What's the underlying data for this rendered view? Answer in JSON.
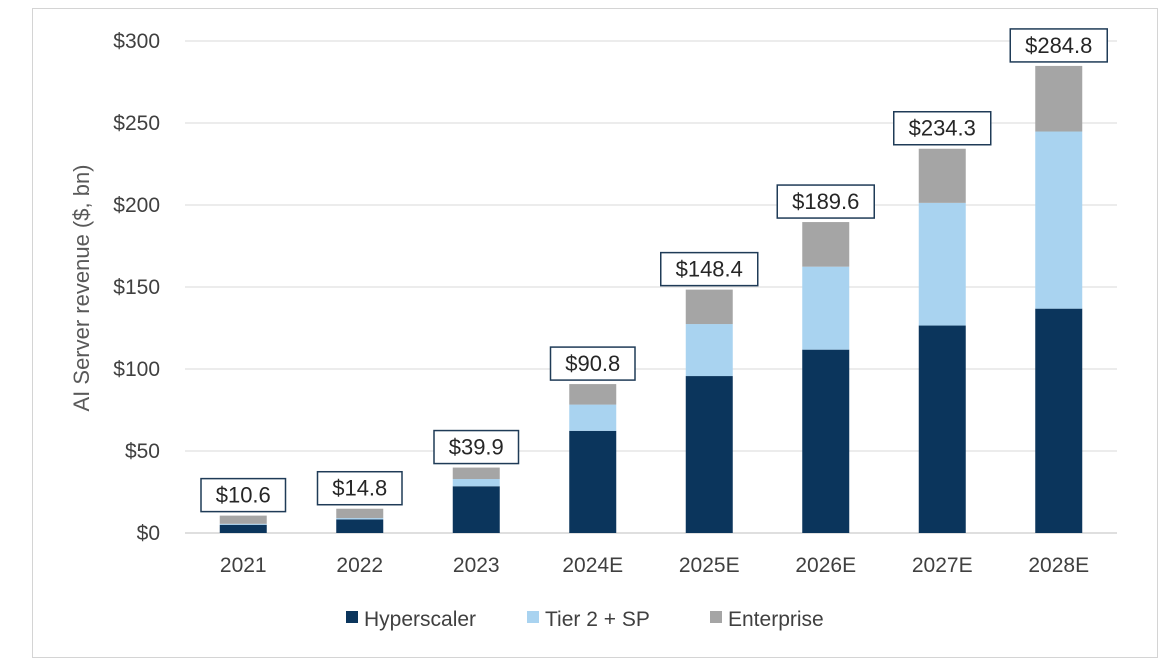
{
  "chart_data": {
    "type": "bar",
    "stacked": true,
    "ylabel": "AI Server revenue ($, bn)",
    "xlabel": "",
    "ylim": [
      0,
      300
    ],
    "yticks": [
      0,
      50,
      100,
      150,
      200,
      250,
      300
    ],
    "ytick_labels": [
      "$0",
      "$50",
      "$100",
      "$150",
      "$200",
      "$250",
      "$300"
    ],
    "grid": true,
    "legend_position": "bottom",
    "categories": [
      "2021",
      "2022",
      "2023",
      "2024E",
      "2025E",
      "2026E",
      "2027E",
      "2028E"
    ],
    "series": [
      {
        "name": "Hyperscaler",
        "color": "#0b355c",
        "values": [
          5.0,
          8.3,
          28.5,
          62.3,
          95.7,
          111.8,
          126.5,
          136.8
        ]
      },
      {
        "name": "Tier 2 + SP",
        "color": "#a9d3f0",
        "values": [
          0.6,
          0.8,
          4.4,
          16.0,
          31.7,
          50.6,
          74.8,
          108.0
        ]
      },
      {
        "name": "Enterprise",
        "color": "#a5a5a5",
        "values": [
          5.0,
          5.7,
          7.0,
          12.5,
          21.0,
          27.2,
          33.0,
          40.0
        ]
      }
    ],
    "totals": [
      10.6,
      14.8,
      39.9,
      90.8,
      148.4,
      189.6,
      234.3,
      284.8
    ],
    "total_labels": [
      "$10.6",
      "$14.8",
      "$39.9",
      "$90.8",
      "$148.4",
      "$189.6",
      "$234.3",
      "$284.8"
    ]
  }
}
